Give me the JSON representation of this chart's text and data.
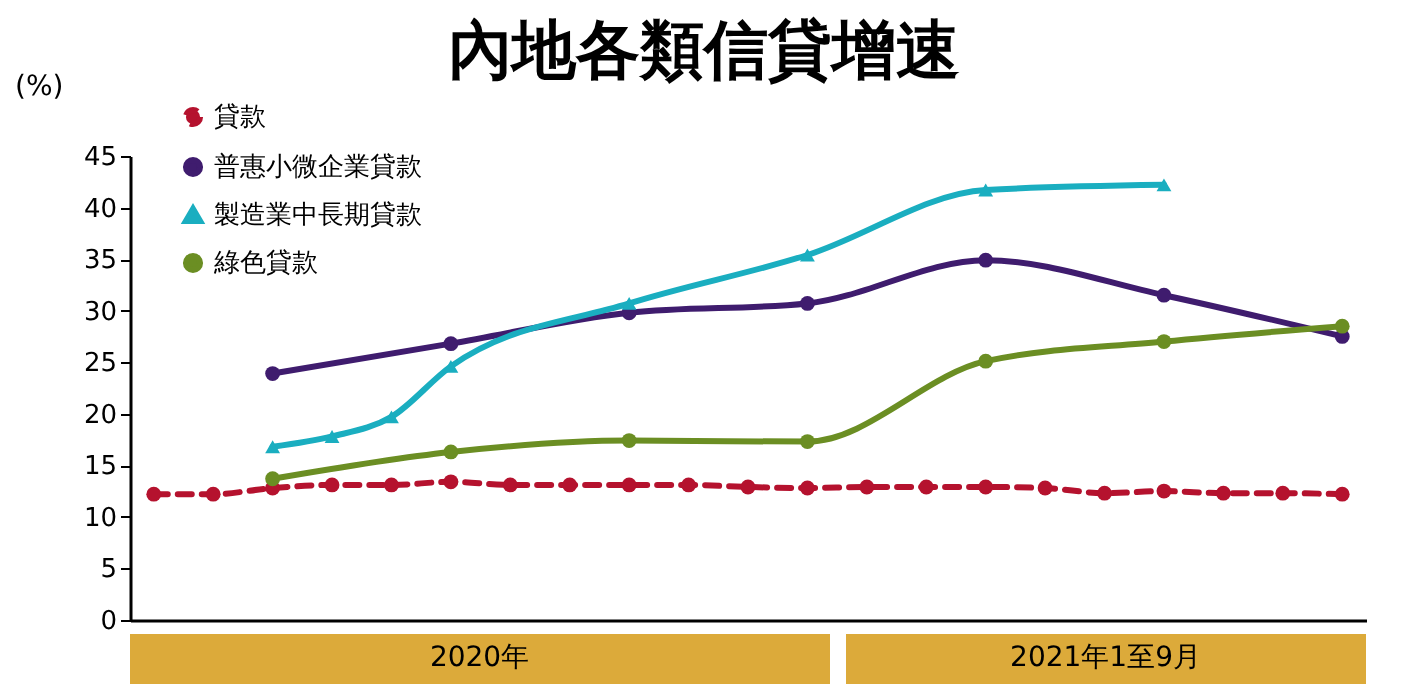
{
  "chart_data": {
    "type": "line",
    "title": "內地各類信貸增速",
    "ylabel": "(%)",
    "categories": [
      null,
      null,
      null,
      null,
      null,
      null,
      null,
      null,
      null,
      null,
      null,
      null,
      null,
      null,
      null,
      null,
      null,
      null,
      null,
      null,
      null
    ],
    "series": [
      {
        "name": "貸款",
        "color": "#b5122e",
        "marker": "circle",
        "line_style": "dashed",
        "values": [
          12.2,
          12.2,
          12.8,
          13.1,
          13.1,
          13.4,
          13.1,
          13.1,
          13.1,
          13.1,
          12.9,
          12.8,
          12.9,
          12.9,
          12.9,
          12.8,
          12.3,
          12.5,
          12.3,
          12.3,
          12.2
        ]
      },
      {
        "name": "普惠小微企業貸款",
        "color": "#3f1c6e",
        "marker": "circle",
        "line_style": "solid",
        "values": [
          null,
          null,
          23.9,
          null,
          null,
          26.8,
          null,
          null,
          29.8,
          null,
          null,
          30.7,
          null,
          null,
          34.9,
          null,
          null,
          31.5,
          null,
          null,
          27.5
        ]
      },
      {
        "name": "製造業中長期貸款",
        "color": "#1aaec0",
        "marker": "triangle",
        "line_style": "solid",
        "values": [
          null,
          null,
          16.8,
          17.8,
          19.7,
          24.6,
          null,
          null,
          30.7,
          null,
          null,
          35.4,
          null,
          null,
          41.7,
          null,
          null,
          42.2,
          null,
          null,
          null
        ]
      },
      {
        "name": "綠色貸款",
        "color": "#6b8e23",
        "marker": "circle",
        "line_style": "solid",
        "values": [
          null,
          null,
          13.7,
          null,
          null,
          16.3,
          null,
          null,
          17.4,
          null,
          null,
          17.3,
          null,
          null,
          25.1,
          null,
          null,
          27.0,
          null,
          null,
          28.5
        ]
      }
    ],
    "ylim": [
      0,
      45
    ],
    "yticks": [
      0,
      5,
      10,
      15,
      20,
      25,
      30,
      35,
      40,
      45
    ],
    "grid": false,
    "legend": "top left",
    "annotations": [
      "2020年",
      "2021年1至9月"
    ]
  }
}
